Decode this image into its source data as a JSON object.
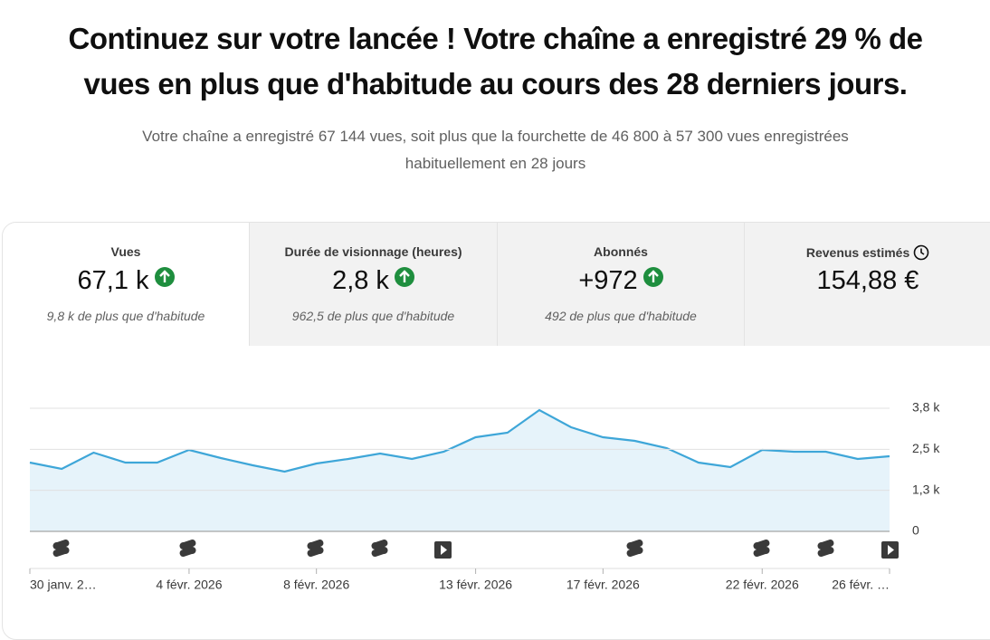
{
  "headline": "Continuez sur votre lancée ! Votre chaîne a enregistré 29 % de vues en plus que d'habitude au cours des 28 derniers jours.",
  "subtitle": "Votre chaîne a enregistré 67 144 vues, soit plus que la fourchette de 46 800 à 57 300 vues enregistrées habituellement en 28 jours",
  "tabs": [
    {
      "label": "Vues",
      "value": "67,1 k",
      "note": "9,8 k de plus que d'habitude"
    },
    {
      "label": "Durée de visionnage (heures)",
      "value": "2,8 k",
      "note": "962,5 de plus que d'habitude"
    },
    {
      "label": "Abonnés",
      "value": "+972",
      "note": "492 de plus que d'habitude"
    },
    {
      "label": "Revenus estimés",
      "value": "154,88 €"
    }
  ],
  "chart_data": {
    "type": "line",
    "categories": [
      "30 janv. 2…",
      null,
      null,
      null,
      null,
      "4 févr. 2026",
      null,
      null,
      null,
      "8 févr. 2026",
      null,
      null,
      null,
      null,
      "13 févr. 2026",
      null,
      null,
      null,
      "17 févr. 2026",
      null,
      null,
      null,
      null,
      "22 févr. 2026",
      null,
      null,
      null,
      "26 févr. …"
    ],
    "values": [
      2124,
      1928,
      2431,
      2124,
      2124,
      2515,
      2263,
      2040,
      1844,
      2096,
      2235,
      2403,
      2235,
      2459,
      2906,
      3046,
      3744,
      3213,
      2906,
      2794,
      2571,
      2124,
      1984,
      2515,
      2459,
      2459,
      2235,
      2319
    ],
    "color": "#3ea6d8",
    "ylim": [
      0,
      3800
    ],
    "yticks": [
      0,
      {
        "value": 1267,
        "label": "1,3 k"
      },
      {
        "value": 2533,
        "label": "2,5 k"
      },
      {
        "value": 3800,
        "label": "3,8 k"
      }
    ],
    "grid": true
  }
}
